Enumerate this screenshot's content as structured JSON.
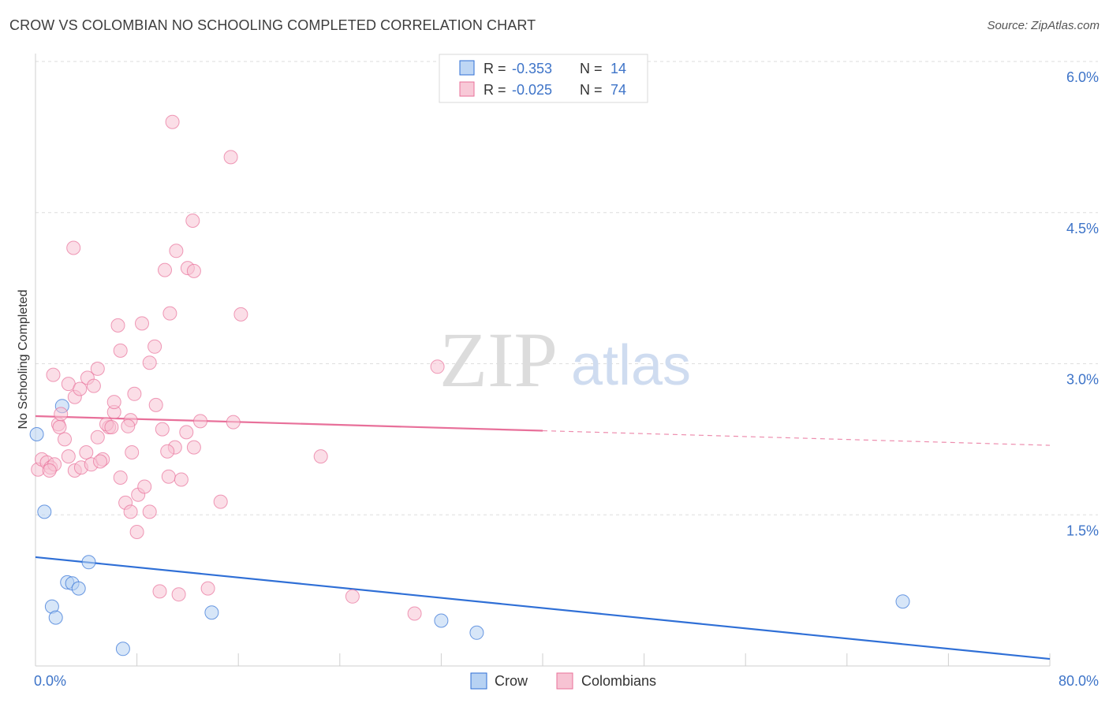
{
  "header": {
    "title": "CROW VS COLOMBIAN NO SCHOOLING COMPLETED CORRELATION CHART",
    "source": "Source: ZipAtlas.com"
  },
  "watermark": {
    "zip": "ZIP",
    "atlas": "atlas"
  },
  "colors": {
    "crow": "#2f6fd6",
    "crow_fill": "#b7d2f3",
    "colombians": "#e8709a",
    "colombians_fill": "#f7c3d3",
    "tick_text": "#3e74c8"
  },
  "legend_top": {
    "rows": [
      {
        "series": "crow",
        "r_label": "R =",
        "r_value": "-0.353",
        "n_label": "N =",
        "n_value": "14"
      },
      {
        "series": "colombians",
        "r_label": "R =",
        "r_value": "-0.025",
        "n_label": "N =",
        "n_value": "74"
      }
    ]
  },
  "legend_bottom": {
    "items": [
      "Crow",
      "Colombians"
    ]
  },
  "chart_data": {
    "type": "scatter",
    "title": "CROW VS COLOMBIAN NO SCHOOLING COMPLETED CORRELATION CHART",
    "xlabel": "",
    "ylabel": "No Schooling Completed",
    "xlim": [
      0,
      80
    ],
    "ylim": [
      0,
      6.0
    ],
    "x_tick_labels": [
      "0.0%",
      "80.0%"
    ],
    "y_ticks": [
      1.5,
      3.0,
      4.5,
      6.0
    ],
    "y_tick_labels": [
      "1.5%",
      "3.0%",
      "4.5%",
      "6.0%"
    ],
    "grid": true,
    "series": [
      {
        "name": "Crow",
        "key": "crow",
        "r": -0.353,
        "n": 14,
        "points": [
          [
            0.1,
            2.3
          ],
          [
            2.1,
            2.58
          ],
          [
            0.7,
            1.53
          ],
          [
            4.2,
            1.03
          ],
          [
            2.5,
            0.83
          ],
          [
            2.9,
            0.82
          ],
          [
            3.4,
            0.77
          ],
          [
            1.3,
            0.59
          ],
          [
            1.6,
            0.48
          ],
          [
            13.9,
            0.53
          ],
          [
            32.0,
            0.45
          ],
          [
            34.8,
            0.33
          ],
          [
            6.9,
            0.17
          ],
          [
            68.4,
            0.64
          ]
        ],
        "trend": {
          "x0": 0,
          "y0": 1.08,
          "x1": 80,
          "y1": 0.07,
          "solid_to": 80
        }
      },
      {
        "name": "Colombians",
        "key": "colombians",
        "r": -0.025,
        "n": 74,
        "points": [
          [
            0.2,
            1.95
          ],
          [
            0.5,
            2.05
          ],
          [
            0.9,
            2.02
          ],
          [
            1.2,
            1.97
          ],
          [
            1.5,
            2.0
          ],
          [
            1.8,
            2.4
          ],
          [
            2.3,
            2.25
          ],
          [
            2.6,
            2.08
          ],
          [
            3.1,
            1.94
          ],
          [
            3.6,
            1.97
          ],
          [
            4.0,
            2.12
          ],
          [
            4.4,
            2.0
          ],
          [
            4.9,
            2.27
          ],
          [
            5.3,
            2.05
          ],
          [
            5.8,
            2.37
          ],
          [
            6.2,
            2.52
          ],
          [
            6.7,
            1.87
          ],
          [
            7.1,
            1.62
          ],
          [
            7.6,
            2.12
          ],
          [
            8.1,
            1.7
          ],
          [
            8.6,
            1.78
          ],
          [
            9.0,
            1.53
          ],
          [
            9.5,
            2.59
          ],
          [
            10.0,
            2.35
          ],
          [
            10.5,
            1.88
          ],
          [
            11.0,
            2.17
          ],
          [
            11.5,
            1.85
          ],
          [
            12.0,
            3.95
          ],
          [
            12.5,
            3.92
          ],
          [
            13.0,
            2.43
          ],
          [
            1.4,
            2.89
          ],
          [
            2.6,
            2.8
          ],
          [
            3.1,
            2.67
          ],
          [
            3.5,
            2.75
          ],
          [
            4.1,
            2.86
          ],
          [
            4.6,
            2.78
          ],
          [
            4.9,
            2.95
          ],
          [
            5.6,
            2.4
          ],
          [
            6.2,
            2.62
          ],
          [
            6.5,
            3.38
          ],
          [
            6.7,
            3.13
          ],
          [
            7.5,
            2.44
          ],
          [
            7.8,
            2.7
          ],
          [
            8.4,
            3.4
          ],
          [
            9.0,
            3.01
          ],
          [
            9.4,
            3.17
          ],
          [
            10.2,
            3.93
          ],
          [
            10.4,
            2.13
          ],
          [
            10.6,
            3.5
          ],
          [
            10.8,
            5.4
          ],
          [
            11.1,
            4.12
          ],
          [
            12.4,
            4.42
          ],
          [
            14.6,
            1.63
          ],
          [
            15.4,
            5.05
          ],
          [
            15.6,
            2.42
          ],
          [
            16.2,
            3.49
          ],
          [
            22.5,
            2.08
          ],
          [
            3.0,
            4.15
          ],
          [
            8.0,
            1.33
          ],
          [
            7.5,
            1.53
          ],
          [
            9.8,
            0.74
          ],
          [
            11.3,
            0.71
          ],
          [
            13.6,
            0.77
          ],
          [
            25.0,
            0.69
          ],
          [
            29.9,
            0.52
          ],
          [
            31.7,
            2.97
          ],
          [
            2.0,
            2.5
          ],
          [
            1.1,
            1.94
          ],
          [
            1.9,
            2.37
          ],
          [
            5.1,
            2.03
          ],
          [
            6.0,
            2.37
          ],
          [
            7.3,
            2.38
          ],
          [
            11.9,
            2.32
          ],
          [
            12.5,
            2.17
          ]
        ],
        "trend": {
          "x0": 0,
          "y0": 2.48,
          "x1": 80,
          "y1": 2.19,
          "solid_to": 40
        }
      }
    ]
  }
}
